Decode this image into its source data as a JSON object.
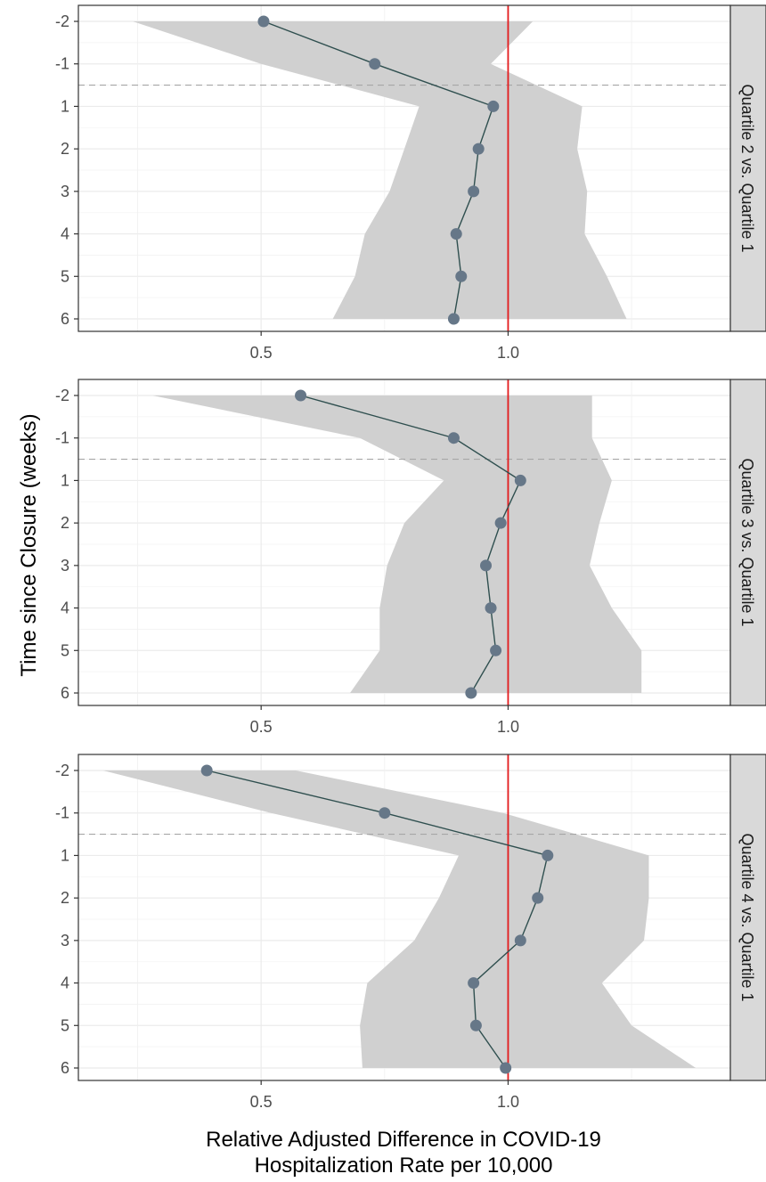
{
  "chart_data": {
    "type": "line",
    "layout": "faceted-vertical",
    "ylabel": "Time since Closure (weeks)",
    "xlabel_lines": [
      "Relative Adjusted Difference in COVID-19",
      "Hospitalization Rate per 10,000"
    ],
    "y_categories": [
      "-2",
      "-1",
      "1",
      "2",
      "3",
      "4",
      "5",
      "6"
    ],
    "x_ticks": [
      0.5,
      1.0
    ],
    "x_tick_labels": [
      "0.5",
      "1.0"
    ],
    "xlim": [
      0.13,
      1.45
    ],
    "reference_line_x": 1.0,
    "reference_line_color": "#e31a1c",
    "dashed_separator_between": [
      "-1",
      "1"
    ],
    "point_color": "#667788",
    "line_color": "#2f4f4f",
    "ribbon_color": "#d0d0d0",
    "grid": true,
    "panels": [
      {
        "strip_label": "Quartile 2 vs. Quartile 1",
        "estimate": [
          0.505,
          0.73,
          0.97,
          0.94,
          0.93,
          0.895,
          0.905,
          0.89
        ],
        "ci_lower": [
          0.24,
          0.5,
          0.82,
          0.79,
          0.76,
          0.71,
          0.69,
          0.645
        ],
        "ci_upper": [
          1.05,
          0.965,
          1.15,
          1.14,
          1.16,
          1.155,
          1.2,
          1.24
        ]
      },
      {
        "strip_label": "Quartile 3 vs. Quartile 1",
        "estimate": [
          0.58,
          0.89,
          1.025,
          0.985,
          0.955,
          0.965,
          0.975,
          0.925
        ],
        "ci_lower": [
          0.28,
          0.7,
          0.87,
          0.79,
          0.755,
          0.74,
          0.74,
          0.68
        ],
        "ci_upper": [
          1.17,
          1.17,
          1.21,
          1.185,
          1.165,
          1.21,
          1.27,
          1.27
        ]
      },
      {
        "strip_label": "Quartile 4 vs. Quartile 1",
        "estimate": [
          0.39,
          0.75,
          1.08,
          1.06,
          1.025,
          0.93,
          0.935,
          0.995
        ],
        "ci_lower": [
          0.18,
          0.52,
          0.9,
          0.86,
          0.81,
          0.715,
          0.7,
          0.705
        ],
        "ci_upper": [
          0.57,
          0.99,
          1.285,
          1.285,
          1.275,
          1.19,
          1.25,
          1.38
        ]
      }
    ]
  }
}
